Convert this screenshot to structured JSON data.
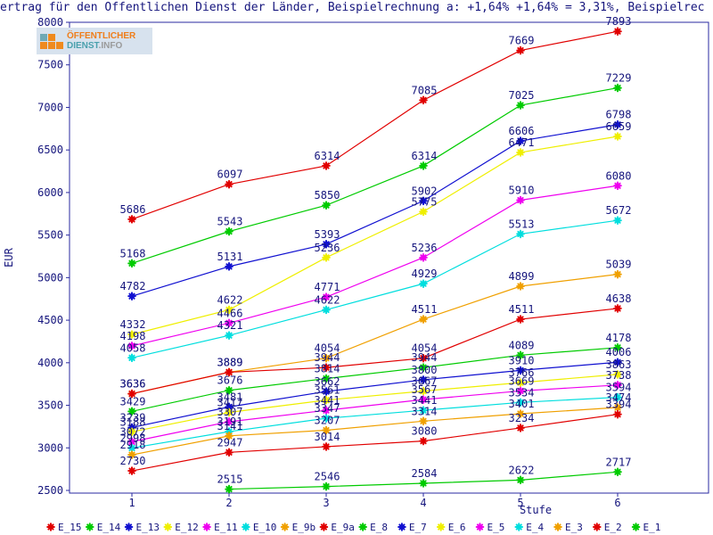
{
  "title": "ertrag für den Öffentlichen Dienst der Länder, Beispielrechnung a: +1,64% +1,64% = 3,31%, Beispielrec",
  "logo": {
    "line1": "ÖFFENTLICHER",
    "line2_a": "DIENST",
    "line2_b": ".INFO"
  },
  "colors": {
    "text": "#15157d",
    "frame": "#2a2aa0",
    "background": "#ffffff"
  },
  "chart_data": {
    "type": "line",
    "x": [
      1,
      2,
      3,
      4,
      5,
      6
    ],
    "xlabel": "Stufe",
    "ylabel": "EUR",
    "ylim": [
      2500,
      8000
    ],
    "yticks": [
      2500,
      3000,
      3500,
      4000,
      4500,
      5000,
      5500,
      6000,
      6500,
      7000,
      7500,
      8000
    ],
    "grid": false,
    "legend_position": "bottom",
    "point_labels": true,
    "series": [
      {
        "name": "E_15",
        "color": "#e10000",
        "values": [
          5686,
          6097,
          6314,
          7085,
          7669,
          7893
        ]
      },
      {
        "name": "E_14",
        "color": "#00cb00",
        "values": [
          5168,
          5543,
          5850,
          6314,
          7025,
          7229
        ]
      },
      {
        "name": "E_13",
        "color": "#1010d0",
        "values": [
          4782,
          5131,
          5393,
          5902,
          6606,
          6798
        ]
      },
      {
        "name": "E_12",
        "color": "#efef00",
        "values": [
          4332,
          4622,
          5236,
          5775,
          6471,
          6659
        ]
      },
      {
        "name": "E_11",
        "color": "#ef00ef",
        "values": [
          4198,
          4466,
          4771,
          5236,
          5910,
          6080
        ]
      },
      {
        "name": "E_10",
        "color": "#00dede",
        "values": [
          4058,
          4321,
          4622,
          4929,
          5513,
          5672
        ]
      },
      {
        "name": "E_9b",
        "color": "#f0a000",
        "values": [
          3636,
          3889,
          4054,
          4511,
          4899,
          5039
        ]
      },
      {
        "name": "E_9a",
        "color": "#e10000",
        "values": [
          3636,
          3889,
          3944,
          4054,
          4511,
          4638
        ]
      },
      {
        "name": "E_8",
        "color": "#00cb00",
        "values": [
          3429,
          3676,
          3814,
          3944,
          4089,
          4178
        ]
      },
      {
        "name": "E_7",
        "color": "#1010d0",
        "values": [
          3239,
          3481,
          3662,
          3800,
          3910,
          4006
        ]
      },
      {
        "name": "E_6",
        "color": "#efef00",
        "values": [
          3188,
          3417,
          3561,
          3667,
          3766,
          3863
        ]
      },
      {
        "name": "E_5",
        "color": "#ef00ef",
        "values": [
          3072,
          3307,
          3441,
          3567,
          3669,
          3738
        ]
      },
      {
        "name": "E_4",
        "color": "#00dede",
        "values": [
          2998,
          3191,
          3347,
          3441,
          3534,
          3594
        ]
      },
      {
        "name": "E_3",
        "color": "#f0a000",
        "values": [
          2918,
          3141,
          3207,
          3314,
          3401,
          3474
        ]
      },
      {
        "name": "E_2",
        "color": "#e10000",
        "values": [
          2730,
          2947,
          3014,
          3080,
          3234,
          3394
        ]
      },
      {
        "name": "E_1",
        "color": "#00cb00",
        "values": [
          null,
          2515,
          2546,
          2584,
          2622,
          2717
        ]
      }
    ]
  }
}
